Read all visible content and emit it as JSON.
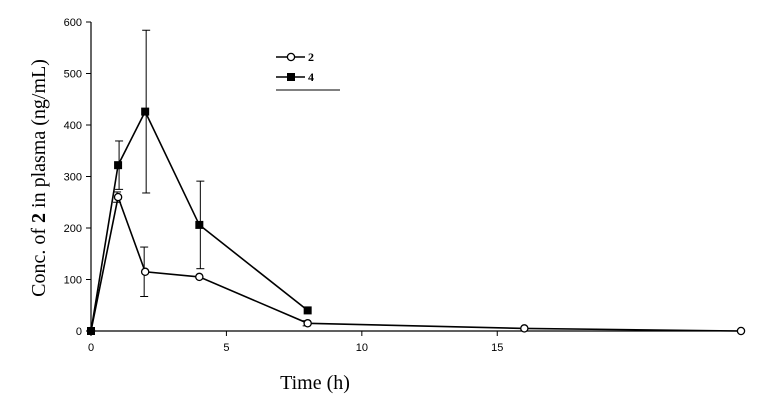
{
  "chart_data": {
    "type": "line",
    "title": "",
    "xlabel": "Time (h)",
    "ylabel_parts": [
      "Conc. of ",
      "2",
      " in plasma (ng/mL)"
    ],
    "xlim": [
      0,
      24
    ],
    "ylim": [
      0,
      600
    ],
    "x_ticks": [
      0,
      5,
      10,
      15
    ],
    "y_ticks": [
      0,
      100,
      200,
      300,
      400,
      500,
      600
    ],
    "x_tick_labels": [
      "0",
      "5",
      "10",
      "15"
    ],
    "y_tick_labels": [
      "0",
      "100",
      "200",
      "300",
      "400",
      "500",
      "600"
    ],
    "grid": false,
    "legend_position": "top-center",
    "series": [
      {
        "name": "2",
        "marker": "open-circle",
        "x": [
          0,
          1,
          2,
          4,
          8,
          16,
          24
        ],
        "y": [
          0,
          260,
          115,
          105,
          15,
          5,
          0
        ],
        "error": [
          0,
          10,
          48,
          0,
          5,
          0,
          0
        ]
      },
      {
        "name": "4",
        "marker": "filled-square",
        "x": [
          0,
          1,
          2,
          4,
          8
        ],
        "y": [
          0,
          322,
          426,
          206,
          40
        ],
        "error": [
          0,
          47,
          158,
          85,
          0
        ]
      }
    ]
  }
}
